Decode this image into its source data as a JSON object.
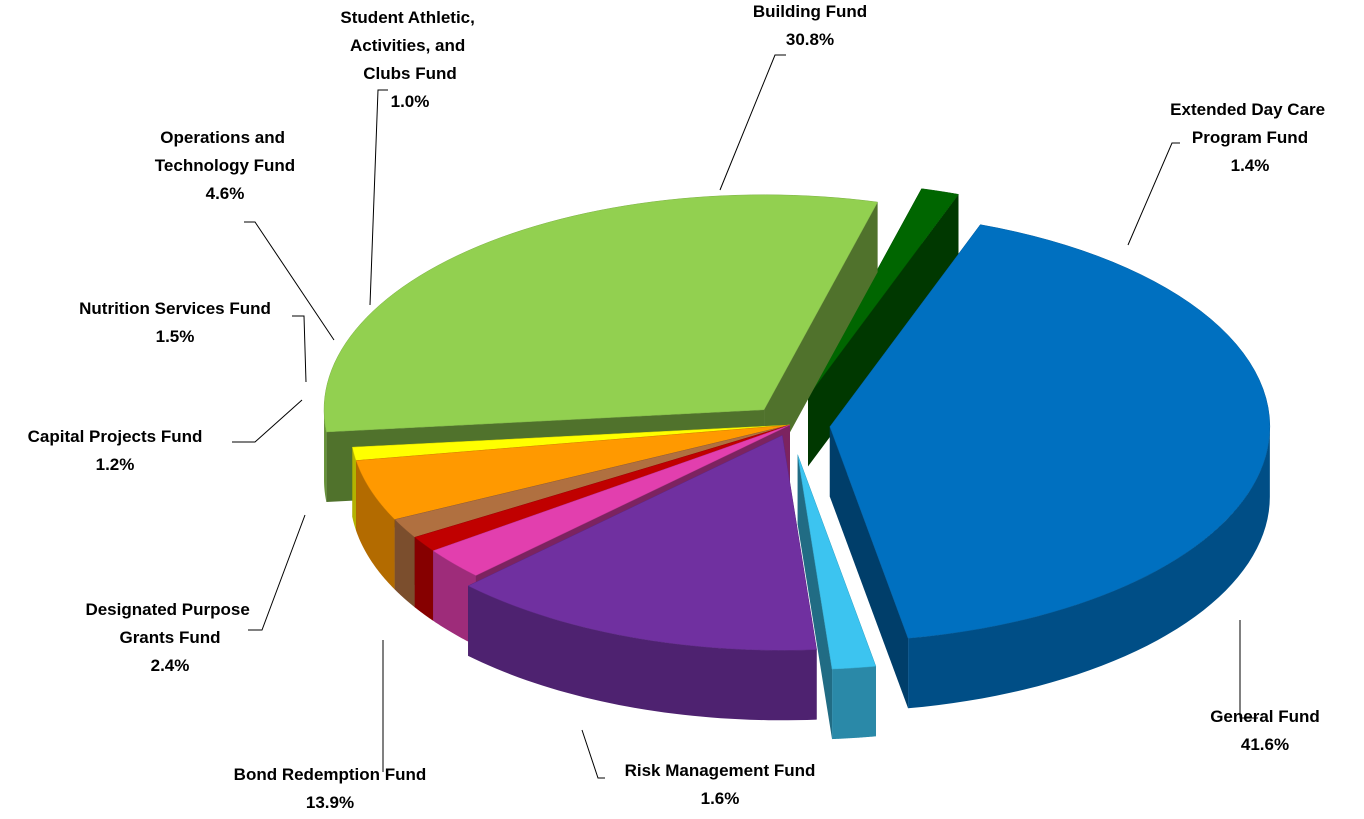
{
  "chart_data": {
    "type": "pie",
    "categories": [
      "General Fund",
      "Risk Management Fund",
      "Bond Redemption Fund",
      "Designated Purpose Grants Fund",
      "Capital Projects Fund",
      "Nutrition Services Fund",
      "Operations and Technology Fund",
      "Student Athletic, Activities, and Clubs Fund",
      "Building Fund",
      "Extended Day Care Program Fund"
    ],
    "values": [
      41.6,
      1.6,
      13.9,
      2.4,
      1.2,
      1.5,
      4.6,
      1.0,
      30.8,
      1.4
    ],
    "value_labels": [
      "41.6%",
      "1.6%",
      "13.9%",
      "2.4%",
      "1.2%",
      "1.5%",
      "4.6%",
      "1.0%",
      "30.8%",
      "1.4%"
    ],
    "colors": [
      "#0070c0",
      "#3cc4f0",
      "#7030a0",
      "#e23fae",
      "#c00000",
      "#b07040",
      "#ff9900",
      "#ffff00",
      "#92d050",
      "#006600"
    ]
  }
}
